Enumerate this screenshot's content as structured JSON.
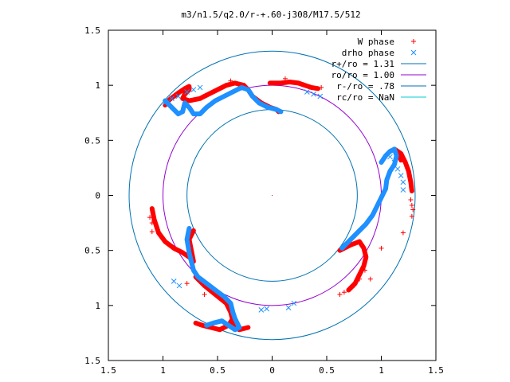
{
  "chart_data": {
    "type": "scatter",
    "title": "m3/n1.5/q2.0/r-+.60-j308/M17.5/512",
    "xlabel": "",
    "ylabel": "",
    "xlim": [
      -1.5,
      1.5
    ],
    "ylim": [
      -1.5,
      1.5
    ],
    "x_ticks": [
      -1.5,
      -1,
      -0.5,
      0,
      0.5,
      1,
      1.5
    ],
    "x_tick_labels": [
      "1.5",
      "1",
      "0.5",
      "0",
      "0.5",
      "1",
      "1.5"
    ],
    "y_ticks": [
      -1.5,
      -1,
      -0.5,
      0,
      0.5,
      1,
      1.5
    ],
    "y_tick_labels": [
      "1.5",
      "1",
      "0.5",
      "0",
      "0.5",
      "1",
      "1.5"
    ],
    "grid": false,
    "legend_position": "top-right",
    "series": [
      {
        "name": "W phase",
        "kind": "points",
        "marker": "plus",
        "color": "#ff0000",
        "points": [
          [
            1.27,
            -0.04
          ],
          [
            1.28,
            -0.09
          ],
          [
            1.29,
            -0.13
          ],
          [
            1.28,
            -0.19
          ],
          [
            1.2,
            -0.34
          ],
          [
            1.0,
            -0.48
          ],
          [
            0.85,
            -0.68
          ],
          [
            0.8,
            -0.76
          ],
          [
            0.75,
            -0.82
          ],
          [
            0.66,
            -0.88
          ],
          [
            0.62,
            -0.9
          ],
          [
            0.9,
            -0.76
          ],
          [
            -0.78,
            -0.8
          ],
          [
            -0.62,
            -0.9
          ],
          [
            -1.1,
            -0.25
          ],
          [
            -1.1,
            -0.33
          ],
          [
            -1.12,
            -0.2
          ],
          [
            -0.38,
            1.04
          ],
          [
            0.12,
            1.06
          ],
          [
            0.45,
            0.98
          ]
        ]
      },
      {
        "name": "drho phase",
        "kind": "points",
        "marker": "cross",
        "color": "#1e90ff",
        "points": [
          [
            1.08,
            0.35
          ],
          [
            1.12,
            0.3
          ],
          [
            1.15,
            0.24
          ],
          [
            1.18,
            0.18
          ],
          [
            1.2,
            0.12
          ],
          [
            1.2,
            0.05
          ],
          [
            0.2,
            -0.98
          ],
          [
            0.15,
            -1.02
          ],
          [
            -0.05,
            -1.03
          ],
          [
            -0.1,
            -1.04
          ],
          [
            -0.85,
            -0.82
          ],
          [
            -0.9,
            -0.78
          ],
          [
            -0.98,
            0.84
          ],
          [
            -0.92,
            0.88
          ],
          [
            -0.86,
            0.9
          ],
          [
            -0.78,
            0.94
          ],
          [
            -0.72,
            0.96
          ],
          [
            -0.66,
            0.98
          ],
          [
            0.32,
            0.94
          ],
          [
            0.38,
            0.92
          ],
          [
            0.44,
            0.9
          ]
        ]
      },
      {
        "name": "r+/ro = 1.31",
        "kind": "circle",
        "r": 1.31,
        "color": "#0072b2"
      },
      {
        "name": "ro/ro = 1.00",
        "kind": "circle",
        "r": 1.0,
        "color": "#9400d3"
      },
      {
        "name": "r-/ro = .78",
        "kind": "circle",
        "r": 0.78,
        "color": "#0072b2"
      },
      {
        "name": "rc/ro = NaN",
        "kind": "circle",
        "r": null,
        "color": "#00ced1"
      }
    ],
    "curves": [
      {
        "series": "W phase",
        "kind": "dense",
        "color": "#ff0000",
        "size": 6,
        "points": [
          [
            -0.98,
            0.82
          ],
          [
            -0.94,
            0.87
          ],
          [
            -0.86,
            0.93
          ],
          [
            -0.8,
            0.97
          ],
          [
            -0.76,
            0.99
          ],
          [
            -0.76,
            0.96
          ],
          [
            -0.8,
            0.92
          ],
          [
            -0.82,
            0.88
          ],
          [
            -0.76,
            0.86
          ],
          [
            -0.66,
            0.88
          ],
          [
            -0.58,
            0.92
          ],
          [
            -0.5,
            0.96
          ],
          [
            -0.42,
            1.0
          ],
          [
            -0.34,
            1.02
          ],
          [
            -0.26,
            1.0
          ]
        ]
      },
      {
        "series": "W phase",
        "kind": "dense",
        "color": "#ff0000",
        "size": 6,
        "points": [
          [
            -0.02,
            1.02
          ],
          [
            0.08,
            1.02
          ],
          [
            0.16,
            1.03
          ],
          [
            0.24,
            1.02
          ],
          [
            0.3,
            1.0
          ],
          [
            0.36,
            0.98
          ],
          [
            0.42,
            0.97
          ]
        ]
      },
      {
        "series": "W phase",
        "kind": "dense",
        "color": "#ff0000",
        "size": 6,
        "points": [
          [
            -0.26,
            1.0
          ],
          [
            -0.22,
            0.96
          ],
          [
            -0.18,
            0.9
          ],
          [
            -0.1,
            0.84
          ],
          [
            -0.02,
            0.8
          ],
          [
            0.04,
            0.78
          ],
          [
            0.06,
            0.76
          ]
        ]
      },
      {
        "series": "W phase",
        "kind": "dense",
        "color": "#ff0000",
        "size": 6,
        "points": [
          [
            1.18,
            0.32
          ],
          [
            1.15,
            0.4
          ],
          [
            1.12,
            0.42
          ],
          [
            1.18,
            0.38
          ],
          [
            1.22,
            0.3
          ],
          [
            1.25,
            0.22
          ],
          [
            1.27,
            0.12
          ],
          [
            1.28,
            0.04
          ]
        ]
      },
      {
        "series": "W phase",
        "kind": "dense",
        "color": "#ff0000",
        "size": 6,
        "points": [
          [
            0.62,
            -0.5
          ],
          [
            0.72,
            -0.45
          ],
          [
            0.8,
            -0.42
          ],
          [
            0.84,
            -0.48
          ],
          [
            0.86,
            -0.56
          ],
          [
            0.84,
            -0.64
          ],
          [
            0.8,
            -0.72
          ],
          [
            0.76,
            -0.8
          ],
          [
            0.7,
            -0.86
          ]
        ]
      },
      {
        "series": "W phase",
        "kind": "dense",
        "color": "#ff0000",
        "size": 6,
        "points": [
          [
            -1.1,
            -0.12
          ],
          [
            -1.08,
            -0.22
          ],
          [
            -1.04,
            -0.34
          ],
          [
            -0.98,
            -0.42
          ],
          [
            -0.9,
            -0.48
          ],
          [
            -0.82,
            -0.52
          ],
          [
            -0.76,
            -0.56
          ],
          [
            -0.72,
            -0.6
          ],
          [
            -0.74,
            -0.5
          ],
          [
            -0.76,
            -0.4
          ],
          [
            -0.72,
            -0.32
          ]
        ]
      },
      {
        "series": "W phase",
        "kind": "dense",
        "color": "#ff0000",
        "size": 6,
        "points": [
          [
            -0.7,
            -0.74
          ],
          [
            -0.62,
            -0.82
          ],
          [
            -0.52,
            -0.9
          ],
          [
            -0.42,
            -0.98
          ],
          [
            -0.38,
            -1.06
          ],
          [
            -0.36,
            -1.14
          ],
          [
            -0.34,
            -1.2
          ],
          [
            -0.3,
            -1.22
          ],
          [
            -0.22,
            -1.2
          ]
        ]
      },
      {
        "series": "W phase",
        "kind": "dense",
        "color": "#ff0000",
        "size": 6,
        "points": [
          [
            -0.7,
            -1.16
          ],
          [
            -0.64,
            -1.18
          ],
          [
            -0.56,
            -1.2
          ],
          [
            -0.48,
            -1.22
          ],
          [
            -0.4,
            -1.18
          ],
          [
            -0.36,
            -1.12
          ]
        ]
      },
      {
        "series": "drho phase",
        "kind": "dense",
        "color": "#1e90ff",
        "size": 6,
        "points": [
          [
            -0.98,
            0.86
          ],
          [
            -0.92,
            0.8
          ],
          [
            -0.86,
            0.74
          ],
          [
            -0.82,
            0.76
          ],
          [
            -0.8,
            0.84
          ],
          [
            -0.76,
            0.8
          ],
          [
            -0.72,
            0.74
          ],
          [
            -0.66,
            0.74
          ],
          [
            -0.6,
            0.8
          ],
          [
            -0.52,
            0.86
          ],
          [
            -0.44,
            0.9
          ],
          [
            -0.36,
            0.94
          ],
          [
            -0.28,
            0.98
          ],
          [
            -0.22,
            0.96
          ],
          [
            -0.18,
            0.9
          ],
          [
            -0.12,
            0.84
          ],
          [
            -0.04,
            0.8
          ],
          [
            0.04,
            0.78
          ],
          [
            0.08,
            0.76
          ]
        ]
      },
      {
        "series": "drho phase",
        "kind": "dense",
        "color": "#1e90ff",
        "size": 6,
        "points": [
          [
            1.0,
            0.3
          ],
          [
            1.04,
            0.36
          ],
          [
            1.08,
            0.4
          ],
          [
            1.12,
            0.42
          ],
          [
            1.14,
            0.36
          ],
          [
            1.12,
            0.28
          ],
          [
            1.08,
            0.22
          ],
          [
            1.05,
            0.14
          ],
          [
            1.04,
            0.06
          ],
          [
            1.0,
            -0.02
          ],
          [
            0.96,
            -0.1
          ],
          [
            0.92,
            -0.18
          ],
          [
            0.86,
            -0.26
          ],
          [
            0.78,
            -0.34
          ],
          [
            0.7,
            -0.42
          ],
          [
            0.64,
            -0.48
          ]
        ]
      },
      {
        "series": "drho phase",
        "kind": "dense",
        "color": "#1e90ff",
        "size": 6,
        "points": [
          [
            -0.76,
            -0.3
          ],
          [
            -0.78,
            -0.4
          ],
          [
            -0.76,
            -0.52
          ],
          [
            -0.74,
            -0.6
          ],
          [
            -0.72,
            -0.68
          ],
          [
            -0.68,
            -0.74
          ],
          [
            -0.6,
            -0.8
          ],
          [
            -0.52,
            -0.86
          ],
          [
            -0.44,
            -0.92
          ],
          [
            -0.38,
            -0.98
          ],
          [
            -0.36,
            -1.06
          ],
          [
            -0.34,
            -1.12
          ],
          [
            -0.32,
            -1.16
          ],
          [
            -0.3,
            -1.2
          ],
          [
            -0.34,
            -1.22
          ],
          [
            -0.4,
            -1.18
          ],
          [
            -0.46,
            -1.14
          ],
          [
            -0.54,
            -1.16
          ],
          [
            -0.6,
            -1.18
          ]
        ]
      }
    ]
  }
}
